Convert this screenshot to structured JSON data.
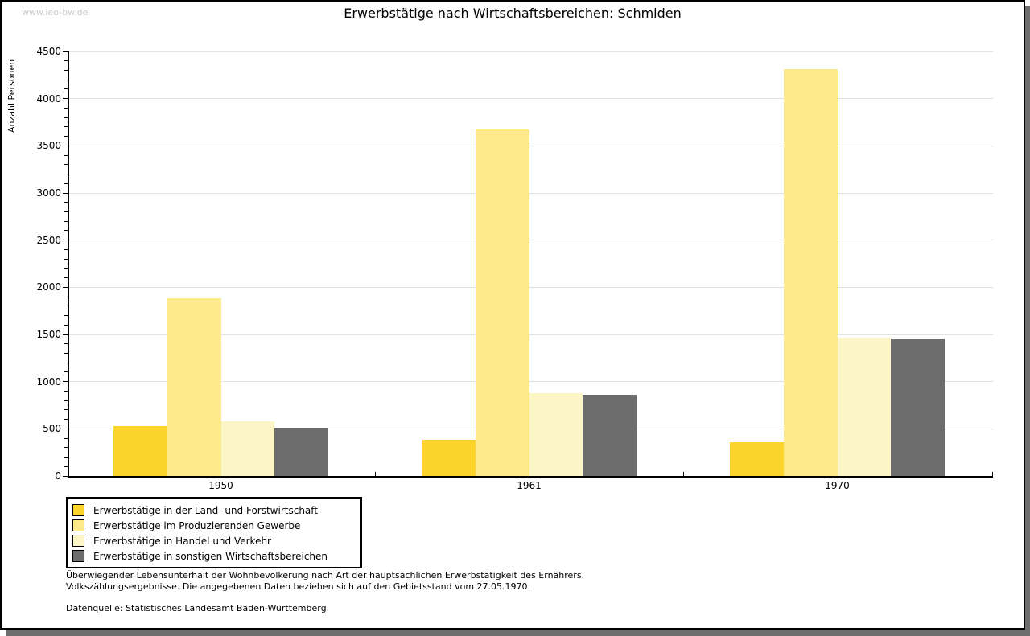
{
  "watermark": "www.leo-bw.de",
  "title": "Erwerbstätige nach Wirtschaftsbereichen: Schmiden",
  "chart_data": {
    "type": "bar",
    "title": "Erwerbstätige nach Wirtschaftsbereichen: Schmiden",
    "xlabel": "",
    "ylabel": "Anzahl Personen",
    "categories": [
      "1950",
      "1961",
      "1970"
    ],
    "series": [
      {
        "name": "Erwerbstätige in der Land- und Forstwirtschaft",
        "color": "#fcd42d",
        "values": [
          530,
          380,
          360
        ]
      },
      {
        "name": "Erwerbstätige im Produzierenden Gewerbe",
        "color": "#fbe98a",
        "values": [
          1880,
          3670,
          4310
        ]
      },
      {
        "name": "Erwerbstätige in Handel und Verkehr",
        "color": "#fcf5c6",
        "values": [
          580,
          880,
          1470
        ]
      },
      {
        "name": "Erwerbstätige in sonstigen Wirtschaftsbereichen",
        "color": "#6d6d6d",
        "values": [
          510,
          860,
          1460
        ]
      }
    ],
    "ylim": [
      0,
      4500
    ],
    "ytick_step": 500,
    "yminor_step": 100,
    "grid": "horizontal",
    "legend_position": "bottom-left"
  },
  "footnotes": {
    "line1": "Überwiegender Lebensunterhalt der Wohnbevölkerung nach Art der hauptsächlichen Erwerbstätigkeit des Ernährers.",
    "line2": "Volkszählungsergebnisse. Die angegebenen Daten beziehen sich auf den Gebietsstand vom 27.05.1970.",
    "source": "Datenquelle: Statistisches Landesamt Baden-Württemberg."
  },
  "colors": {
    "page_shadow": "#6e6e6e",
    "gridline": "#e2e2e2",
    "watermark_text": "#c9c9c9",
    "axis": "#000000"
  }
}
